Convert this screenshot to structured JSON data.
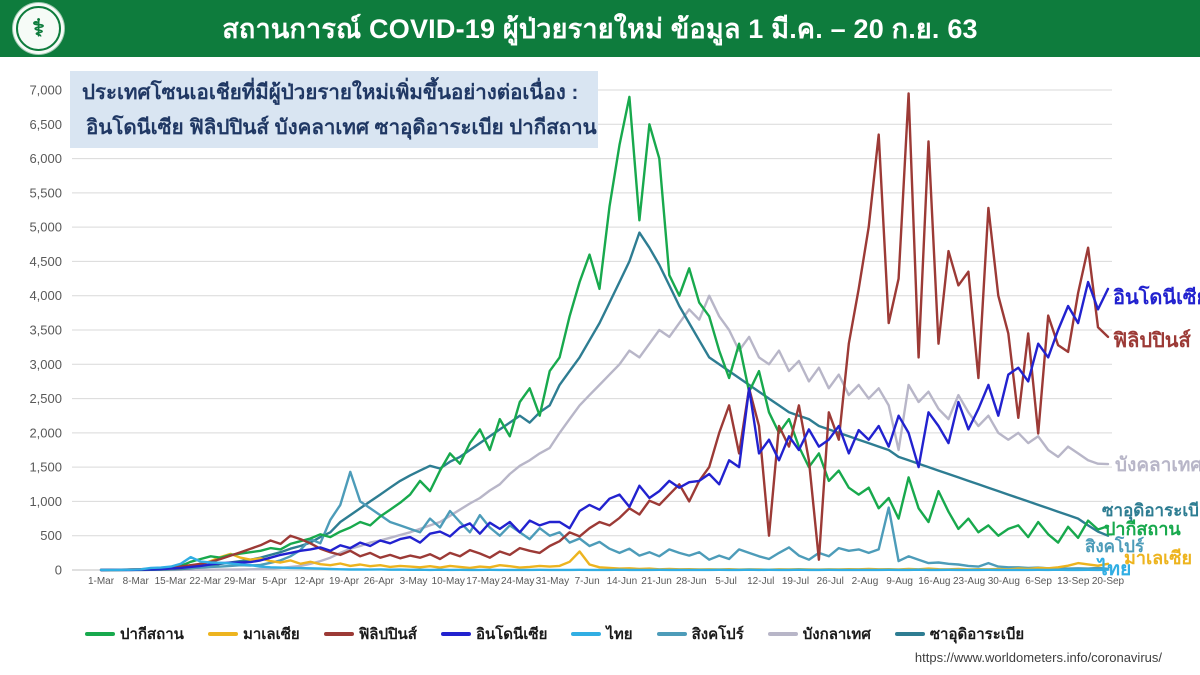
{
  "header": {
    "title": "สถานการณ์ COVID-19 ผู้ป่วยรายใหม่ ข้อมูล 1 มี.ค. – 20 ก.ย. 63",
    "logo": "moph-seal",
    "bg_color": "#0e7c3d"
  },
  "info_box": {
    "line1": "ประเทศโซนเอเชียที่มีผู้ป่วยรายใหม่เพิ่มขึ้นอย่างต่อเนื่อง :",
    "line2": "อินโดนีเซีย ฟิลิปปินส์ บังคลาเทศ ซาอุดิอาระเบีย ปากีสถาน",
    "bg_color": "#d9e5f2",
    "text_color": "#203864"
  },
  "footer": {
    "source_url": "https://www.worldometers.info/coronavirus/"
  },
  "chart_data": {
    "type": "line",
    "title": "",
    "xlabel": "",
    "ylabel": "",
    "ylim": [
      0,
      7000
    ],
    "y_tick_step": 500,
    "grid": true,
    "legend_position": "bottom",
    "grid_color": "#d9d9d9",
    "axis_text_color": "#595959",
    "x_note": "daily new cases 1-Mar to 20-Sep 2020, one point every 2 days",
    "x_tick_labels": [
      "1-Mar",
      "8-Mar",
      "15-Mar",
      "22-Mar",
      "29-Mar",
      "5-Apr",
      "12-Apr",
      "19-Apr",
      "26-Apr",
      "3-May",
      "10-May",
      "17-May",
      "24-May",
      "31-May",
      "7-Jun",
      "14-Jun",
      "21-Jun",
      "28-Jun",
      "5-Jul",
      "12-Jul",
      "19-Jul",
      "26-Jul",
      "2-Aug",
      "9-Aug",
      "16-Aug",
      "23-Aug",
      "30-Aug",
      "6-Sep",
      "13-Sep",
      "20-Sep"
    ],
    "series": [
      {
        "key": "pakistan",
        "legend_label": "ปากีสถาน",
        "end_label": "ปากีสถาน",
        "color": "#18a94d",
        "values": [
          0,
          1,
          2,
          3,
          5,
          8,
          15,
          30,
          60,
          120,
          160,
          200,
          180,
          220,
          240,
          260,
          280,
          320,
          300,
          380,
          420,
          460,
          520,
          480,
          560,
          620,
          700,
          650,
          780,
          880,
          980,
          1100,
          1300,
          1150,
          1450,
          1700,
          1550,
          1850,
          2050,
          1750,
          2200,
          1950,
          2450,
          2650,
          2250,
          2900,
          3100,
          3700,
          4200,
          4600,
          4100,
          5300,
          6200,
          6900,
          5100,
          6500,
          6000,
          4300,
          4000,
          4400,
          3900,
          3700,
          3200,
          2800,
          3300,
          2600,
          2900,
          2300,
          2000,
          2200,
          1800,
          1500,
          1700,
          1300,
          1450,
          1200,
          1100,
          1200,
          900,
          1050,
          750,
          1350,
          900,
          700,
          1150,
          850,
          600,
          750,
          550,
          650,
          500,
          600,
          650,
          480,
          700,
          520,
          400,
          630,
          470,
          720,
          590,
          640
        ]
      },
      {
        "key": "malaysia",
        "legend_label": "มาเลเซีย",
        "end_label": "มาเลเซีย",
        "color": "#edb41f",
        "values": [
          1,
          2,
          3,
          5,
          7,
          10,
          15,
          20,
          30,
          50,
          80,
          130,
          190,
          235,
          180,
          150,
          170,
          130,
          110,
          140,
          90,
          120,
          85,
          70,
          95,
          60,
          80,
          55,
          70,
          45,
          60,
          50,
          40,
          55,
          35,
          60,
          45,
          30,
          50,
          40,
          70,
          55,
          35,
          45,
          60,
          50,
          60,
          120,
          270,
          80,
          40,
          30,
          20,
          25,
          15,
          20,
          10,
          15,
          10,
          12,
          8,
          10,
          8,
          12,
          6,
          10,
          8,
          5,
          10,
          7,
          12,
          8,
          6,
          10,
          8,
          12,
          10,
          15,
          10,
          12,
          8,
          15,
          10,
          20,
          12,
          10,
          15,
          8,
          12,
          10,
          15,
          10,
          20,
          15,
          30,
          25,
          40,
          62,
          100,
          82,
          62,
          90
        ]
      },
      {
        "key": "philippines",
        "legend_label": "ฟิลิปปินส์",
        "end_label": "ฟิลิปปินส์",
        "color": "#9c3a36",
        "values": [
          2,
          3,
          5,
          8,
          12,
          18,
          25,
          35,
          50,
          70,
          90,
          120,
          160,
          210,
          260,
          310,
          360,
          430,
          380,
          500,
          450,
          390,
          310,
          260,
          220,
          280,
          200,
          250,
          180,
          220,
          170,
          210,
          180,
          230,
          160,
          250,
          200,
          290,
          240,
          180,
          270,
          220,
          320,
          280,
          250,
          350,
          420,
          550,
          490,
          610,
          700,
          650,
          760,
          900,
          810,
          1010,
          950,
          1100,
          1250,
          1000,
          1300,
          1500,
          2000,
          2400,
          1700,
          2650,
          2100,
          500,
          2100,
          1800,
          2400,
          1600,
          150,
          2300,
          1900,
          3300,
          4100,
          5000,
          6350,
          3600,
          4250,
          6950,
          3100,
          6250,
          3300,
          4650,
          4150,
          4350,
          2800,
          5280,
          4000,
          3450,
          2220,
          3450,
          1990,
          3710,
          3280,
          3180,
          4040,
          4700,
          3540,
          3400
        ]
      },
      {
        "key": "indonesia",
        "legend_label": "อินโดนีเซีย",
        "end_label": "อินโดนีเซีย",
        "color": "#2222cf",
        "values": [
          0,
          1,
          2,
          2,
          5,
          8,
          12,
          20,
          30,
          45,
          60,
          82,
          100,
          105,
          110,
          115,
          140,
          180,
          220,
          250,
          280,
          300,
          330,
          280,
          360,
          320,
          400,
          350,
          430,
          390,
          450,
          480,
          400,
          530,
          560,
          490,
          620,
          680,
          530,
          690,
          600,
          700,
          550,
          720,
          650,
          700,
          700,
          610,
          860,
          950,
          880,
          1040,
          1100,
          920,
          1230,
          1050,
          1150,
          1300,
          1200,
          1280,
          1300,
          1400,
          1250,
          1600,
          1500,
          2650,
          1700,
          1900,
          1600,
          1950,
          1750,
          2050,
          1800,
          1900,
          2100,
          1700,
          2040,
          1900,
          2100,
          1800,
          2250,
          2000,
          1500,
          2300,
          2100,
          1850,
          2450,
          2050,
          2350,
          2700,
          2250,
          2850,
          2950,
          2750,
          3300,
          3100,
          3500,
          3850,
          3600,
          4200,
          3800,
          4100
        ]
      },
      {
        "key": "thailand",
        "legend_label": "ไทย",
        "end_label": "ไทย",
        "color": "#31aee3",
        "values": [
          1,
          2,
          3,
          5,
          10,
          30,
          35,
          50,
          90,
          188,
          122,
          110,
          105,
          95,
          80,
          70,
          50,
          40,
          35,
          30,
          28,
          25,
          20,
          15,
          10,
          8,
          7,
          6,
          9,
          5,
          6,
          3,
          5,
          2,
          4,
          1,
          3,
          2,
          1,
          3,
          2,
          1,
          2,
          1,
          3,
          1,
          2,
          1,
          3,
          2,
          1,
          2,
          4,
          1,
          2,
          1,
          3,
          2,
          1,
          2,
          1,
          2,
          3,
          1,
          2,
          5,
          1,
          3,
          2,
          1,
          4,
          2,
          1,
          3,
          1,
          2,
          1,
          2,
          1,
          3,
          2,
          1,
          4,
          2,
          1,
          3,
          1,
          2,
          1,
          3,
          2,
          1,
          2,
          1,
          3,
          2,
          4,
          1,
          2,
          3,
          1,
          5
        ]
      },
      {
        "key": "singapore",
        "legend_label": "สิงคโปร์",
        "end_label": "สิงคโปร์",
        "color": "#4d9cb9",
        "values": [
          2,
          3,
          5,
          8,
          10,
          12,
          15,
          20,
          25,
          30,
          35,
          45,
          50,
          60,
          70,
          65,
          74,
          105,
          140,
          200,
          290,
          450,
          390,
          730,
          950,
          1430,
          1000,
          900,
          800,
          700,
          650,
          600,
          550,
          750,
          620,
          860,
          700,
          550,
          800,
          620,
          500,
          650,
          550,
          450,
          610,
          500,
          550,
          400,
          460,
          350,
          410,
          310,
          250,
          310,
          210,
          260,
          200,
          300,
          250,
          210,
          260,
          150,
          210,
          160,
          300,
          250,
          200,
          160,
          250,
          330,
          210,
          150,
          250,
          200,
          320,
          280,
          300,
          250,
          300,
          910,
          130,
          200,
          150,
          100,
          110,
          90,
          80,
          60,
          50,
          100,
          50,
          40,
          40,
          30,
          35,
          25,
          30,
          20,
          25,
          20,
          30,
          18
        ]
      },
      {
        "key": "bangladesh",
        "legend_label": "บังกลาเทศ",
        "end_label": "บังคลาเทศ",
        "color": "#b8b6c8",
        "values": [
          0,
          0,
          0,
          0,
          0,
          1,
          1,
          2,
          3,
          3,
          4,
          5,
          6,
          6,
          8,
          10,
          15,
          20,
          30,
          45,
          60,
          90,
          130,
          180,
          250,
          310,
          350,
          400,
          430,
          470,
          510,
          550,
          600,
          650,
          700,
          790,
          880,
          970,
          1050,
          1160,
          1250,
          1400,
          1520,
          1600,
          1700,
          1780,
          2000,
          2200,
          2400,
          2550,
          2700,
          2850,
          3000,
          3200,
          3100,
          3300,
          3500,
          3400,
          3600,
          3800,
          3650,
          4000,
          3700,
          3500,
          3200,
          3400,
          3100,
          3000,
          3200,
          2900,
          3050,
          2750,
          2950,
          2650,
          2850,
          2550,
          2700,
          2500,
          2650,
          2400,
          1750,
          2700,
          2450,
          2600,
          2350,
          2200,
          2550,
          2300,
          2100,
          2250,
          2000,
          1900,
          2000,
          1850,
          1950,
          1750,
          1650,
          1800,
          1700,
          1600,
          1550,
          1545
        ]
      },
      {
        "key": "saudi-arabia",
        "legend_label": "ซาอุดิอาระเบีย",
        "end_label": "ซาอุดิอาระเบีย",
        "color": "#2e7d92",
        "values": [
          0,
          0,
          1,
          1,
          2,
          3,
          5,
          10,
          15,
          25,
          40,
          60,
          90,
          110,
          130,
          150,
          180,
          220,
          260,
          310,
          350,
          400,
          480,
          550,
          700,
          800,
          900,
          1000,
          1100,
          1200,
          1300,
          1380,
          1450,
          1520,
          1480,
          1580,
          1650,
          1750,
          1850,
          1950,
          2050,
          2150,
          2250,
          2150,
          2300,
          2400,
          2700,
          2900,
          3100,
          3350,
          3600,
          3900,
          4200,
          4500,
          4920,
          4700,
          4450,
          4150,
          3850,
          3600,
          3350,
          3100,
          3000,
          2900,
          2800,
          2700,
          2600,
          2500,
          2400,
          2300,
          2250,
          2200,
          2100,
          2050,
          2000,
          1950,
          1900,
          1850,
          1800,
          1750,
          1650,
          1600,
          1550,
          1500,
          1450,
          1400,
          1350,
          1300,
          1250,
          1200,
          1150,
          1100,
          1050,
          1000,
          950,
          900,
          850,
          800,
          750,
          650,
          560,
          500
        ]
      }
    ]
  }
}
